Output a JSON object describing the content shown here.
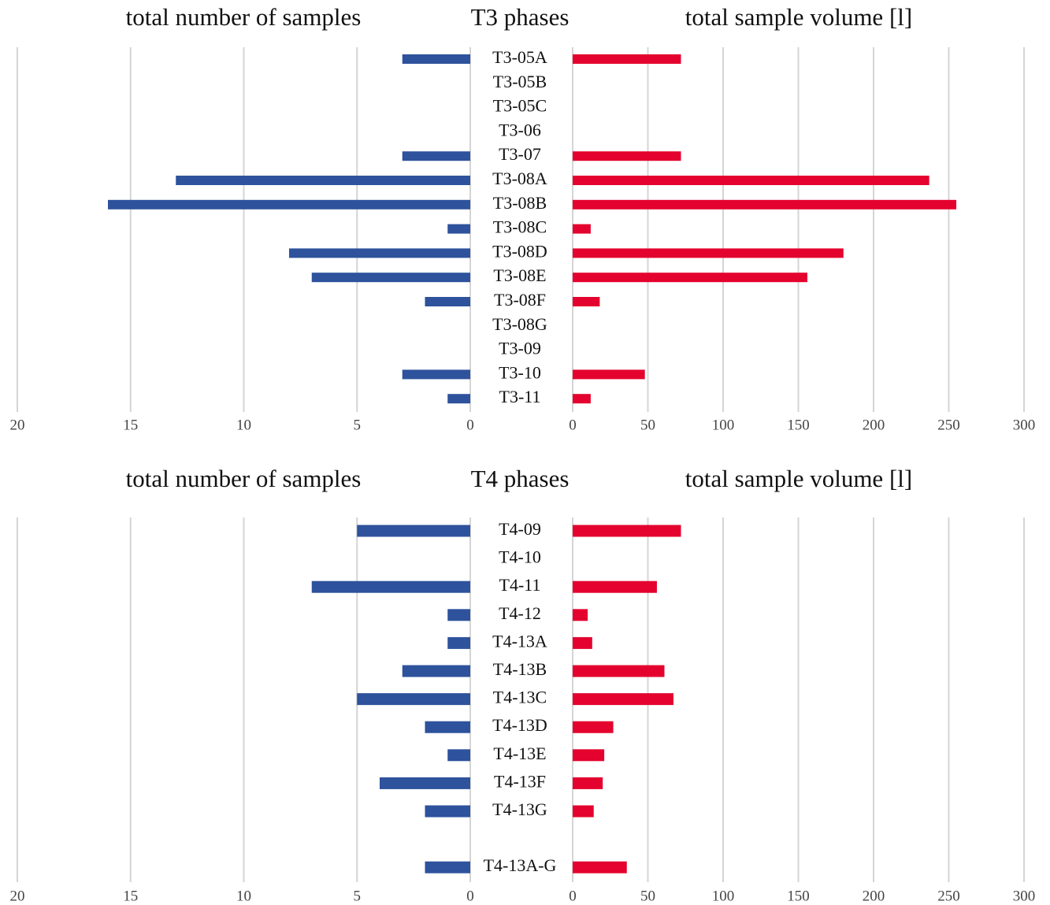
{
  "colors": {
    "left_bars": "#2e529c",
    "right_bars": "#e4032e",
    "grid": "#d4d4d4"
  },
  "chart_data": [
    {
      "type": "bar",
      "orientation": "horizontal",
      "layout": "back-to-back",
      "title": "T3 phases",
      "left_title": "total number of samples",
      "right_title": "total sample volume [l]",
      "categories": [
        "T3-05A",
        "T3-05B",
        "T3-05C",
        "T3-06",
        "T3-07",
        "T3-08A",
        "T3-08B",
        "T3-08C",
        "T3-08D",
        "T3-08E",
        "T3-08F",
        "T3-08G",
        "T3-09",
        "T3-10",
        "T3-11"
      ],
      "series": [
        {
          "name": "total number of samples",
          "side": "left",
          "values": [
            3,
            0,
            0,
            0,
            3,
            13,
            16,
            1,
            8,
            7,
            2,
            0,
            0,
            3,
            1
          ]
        },
        {
          "name": "total sample volume [l]",
          "side": "right",
          "values": [
            72,
            0,
            0,
            0,
            72,
            237,
            255,
            12,
            180,
            156,
            18,
            0,
            0,
            48,
            12
          ]
        }
      ],
      "left_axis": {
        "lim": [
          0,
          20
        ],
        "ticks": [
          "20",
          "15",
          "10",
          "5",
          "0"
        ],
        "reversed": true
      },
      "right_axis": {
        "lim": [
          0,
          300
        ],
        "ticks": [
          "0",
          "50",
          "100",
          "150",
          "200",
          "250",
          "300"
        ]
      },
      "grid": true
    },
    {
      "type": "bar",
      "orientation": "horizontal",
      "layout": "back-to-back",
      "title": "T4 phases",
      "left_title": "total number of samples",
      "right_title": "total sample volume [l]",
      "categories": [
        "T4-09",
        "T4-10",
        "T4-11",
        "T4-12",
        "T4-13A",
        "T4-13B",
        "T4-13C",
        "T4-13D",
        "T4-13E",
        "T4-13F",
        "T4-13G",
        "",
        "T4-13A-G"
      ],
      "series": [
        {
          "name": "total number of samples",
          "side": "left",
          "values": [
            5,
            0,
            7,
            1,
            1,
            3,
            5,
            2,
            1,
            4,
            2,
            0,
            2
          ]
        },
        {
          "name": "total sample volume [l]",
          "side": "right",
          "values": [
            72,
            0,
            56,
            10,
            13,
            61,
            67,
            27,
            21,
            20,
            14,
            0,
            36
          ]
        }
      ],
      "left_axis": {
        "lim": [
          0,
          20
        ],
        "ticks": [
          "20",
          "15",
          "10",
          "5",
          "0"
        ],
        "reversed": true
      },
      "right_axis": {
        "lim": [
          0,
          300
        ],
        "ticks": [
          "0",
          "50",
          "100",
          "150",
          "200",
          "250",
          "300"
        ]
      },
      "grid": true
    }
  ]
}
